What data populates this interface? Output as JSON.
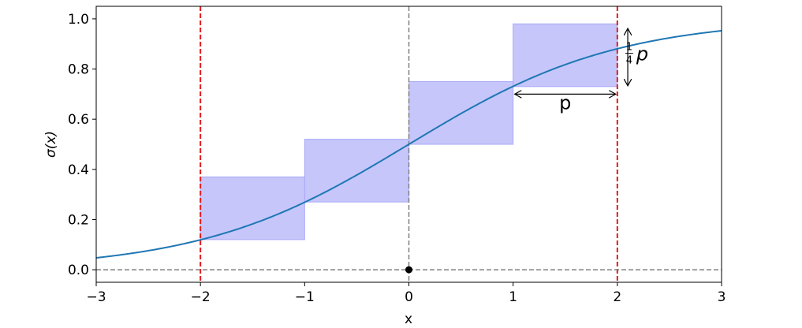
{
  "chart_data": {
    "type": "line",
    "title": "",
    "xlabel": "x",
    "ylabel": "σ(x)",
    "xlim": [
      -3,
      3
    ],
    "ylim": [
      -0.05,
      1.05
    ],
    "x_ticks": [
      -3,
      -2,
      -1,
      0,
      1,
      2,
      3
    ],
    "x_tick_labels": [
      "−3",
      "−2",
      "−1",
      "0",
      "1",
      "2",
      "3"
    ],
    "y_ticks": [
      0.0,
      0.2,
      0.4,
      0.6,
      0.8,
      1.0
    ],
    "y_tick_labels": [
      "0.0",
      "0.2",
      "0.4",
      "0.6",
      "0.8",
      "1.0"
    ],
    "grid": false,
    "series": [
      {
        "function": "sigmoid",
        "x_range": [
          -3,
          3
        ],
        "color": "#1f77b4"
      }
    ],
    "rectangles": [
      {
        "x0": -2,
        "x1": -1,
        "y0": 0.12,
        "y1": 0.37
      },
      {
        "x0": -1,
        "x1": 0,
        "y0": 0.27,
        "y1": 0.52
      },
      {
        "x0": 0,
        "x1": 1,
        "y0": 0.5,
        "y1": 0.75
      },
      {
        "x0": 1,
        "x1": 2,
        "y0": 0.73,
        "y1": 0.98
      }
    ],
    "rect_fill": "#c6c6fb",
    "rect_edge": "#a9a9f6",
    "vertical_lines": [
      {
        "x": -2,
        "color": "#e31a1c",
        "style": "dashed"
      },
      {
        "x": 2,
        "color": "#e31a1c",
        "style": "dashed"
      },
      {
        "x": 0,
        "color": "#808080",
        "style": "dashed"
      }
    ],
    "horizontal_lines": [
      {
        "y": 0,
        "color": "#808080",
        "style": "dashed"
      }
    ],
    "points": [
      {
        "x": 0,
        "y": 0
      }
    ],
    "annotations": {
      "horizontal_arrow": {
        "x0": 1,
        "x1": 2,
        "y": 0.7,
        "label": "p",
        "label_x": 1.5,
        "label_y": 0.64
      },
      "vertical_arrow": {
        "x": 2.1,
        "y0": 0.73,
        "y1": 0.965,
        "label_num": "1",
        "label_den": "4",
        "label_var": "p",
        "label_x": 2.25,
        "label_y": 0.85
      }
    }
  }
}
